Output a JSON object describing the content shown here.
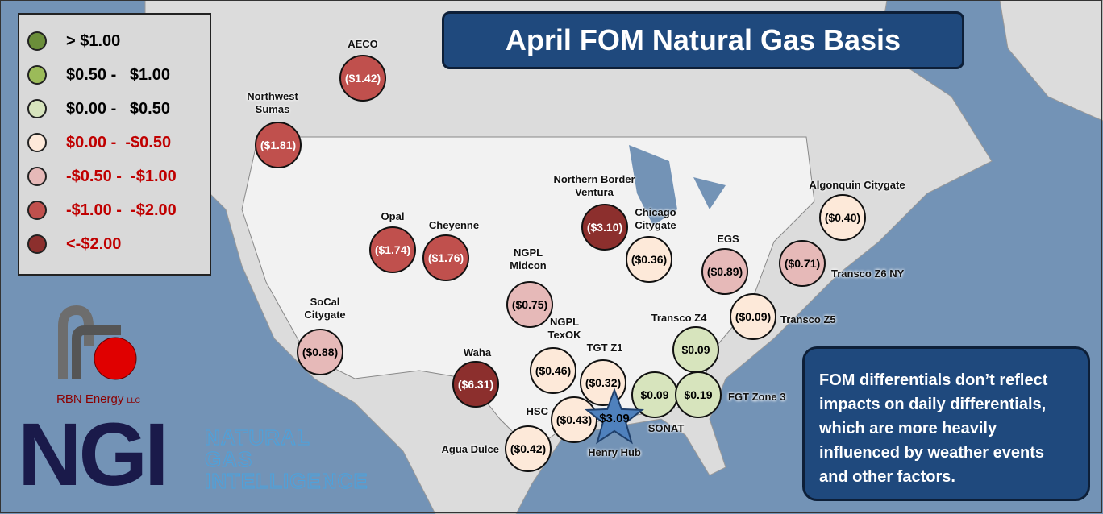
{
  "title": "April FOM Natural Gas Basis",
  "legend": [
    {
      "label": "> $1.00",
      "color": "#6b8e3a",
      "text_color": "#000000"
    },
    {
      "label": "$0.50 -   $1.00",
      "color": "#9bbb59",
      "text_color": "#000000"
    },
    {
      "label": "$0.00 -   $0.50",
      "color": "#d7e4bd",
      "text_color": "#000000"
    },
    {
      "label": "$0.00 -  -$0.50",
      "color": "#fde9d9",
      "text_color": "#c00000"
    },
    {
      "label": "-$0.50 -  -$1.00",
      "color": "#e6b9b8",
      "text_color": "#c00000"
    },
    {
      "label": "-$1.00 -  -$2.00",
      "color": "#c0504d",
      "text_color": "#c00000"
    },
    {
      "label": "<-$2.00",
      "color": "#8c2f2d",
      "text_color": "#c00000"
    }
  ],
  "hubs": [
    {
      "name": "AECO",
      "value": "($1.42)",
      "color": "#c0504d",
      "text_color": "#ffffff"
    },
    {
      "name": "Northwest Sumas",
      "value": "($1.81)",
      "color": "#c0504d",
      "text_color": "#ffffff"
    },
    {
      "name": "Opal",
      "value": "($1.74)",
      "color": "#c0504d",
      "text_color": "#ffffff"
    },
    {
      "name": "Cheyenne",
      "value": "($1.76)",
      "color": "#c0504d",
      "text_color": "#ffffff"
    },
    {
      "name": "Northern Border Ventura",
      "value": "($3.10)",
      "color": "#8c2f2d",
      "text_color": "#ffffff"
    },
    {
      "name": "Chicago Citygate",
      "value": "($0.36)",
      "color": "#fde9d9",
      "text_color": "#000000"
    },
    {
      "name": "NGPL Midcon",
      "value": "($0.75)",
      "color": "#e6b9b8",
      "text_color": "#000000"
    },
    {
      "name": "SoCal Citygate",
      "value": "($0.88)",
      "color": "#e6b9b8",
      "text_color": "#000000"
    },
    {
      "name": "Waha",
      "value": "($6.31)",
      "color": "#8c2f2d",
      "text_color": "#ffffff"
    },
    {
      "name": "NGPL TexOK",
      "value": "($0.46)",
      "color": "#fde9d9",
      "text_color": "#000000"
    },
    {
      "name": "TGT Z1",
      "value": "($0.32)",
      "color": "#fde9d9",
      "text_color": "#000000"
    },
    {
      "name": "HSC",
      "value": "($0.43)",
      "color": "#fde9d9",
      "text_color": "#000000"
    },
    {
      "name": "Agua Dulce",
      "value": "($0.42)",
      "color": "#fde9d9",
      "text_color": "#000000"
    },
    {
      "name": "SONAT",
      "value": "$0.09",
      "color": "#d7e4bd",
      "text_color": "#000000"
    },
    {
      "name": "FGT Zone 3",
      "value": "$0.19",
      "color": "#d7e4bd",
      "text_color": "#000000"
    },
    {
      "name": "Transco Z4",
      "value": "$0.09",
      "color": "#d7e4bd",
      "text_color": "#000000"
    },
    {
      "name": "Transco Z5",
      "value": "($0.09)",
      "color": "#fde9d9",
      "text_color": "#000000"
    },
    {
      "name": "EGS",
      "value": "($0.89)",
      "color": "#e6b9b8",
      "text_color": "#000000"
    },
    {
      "name": "Transco Z6 NY",
      "value": "($0.71)",
      "color": "#e6b9b8",
      "text_color": "#000000"
    },
    {
      "name": "Algonquin Citygate",
      "value": "($0.40)",
      "color": "#fde9d9",
      "text_color": "#000000"
    }
  ],
  "henry_hub": {
    "name": "Henry Hub",
    "value": "$3.09",
    "color": "#4f81bd",
    "text_color": "#000000"
  },
  "note": "FOM differentials don’t reflect impacts on daily differentials, which are more heavily influenced by weather events and other factors.",
  "logos": {
    "rbn": "RBN Energy",
    "rbn_suffix": "LLC",
    "ngi": "NGI",
    "ngi_words": [
      "NATURAL",
      "GAS",
      "INTELLIGENCE"
    ]
  }
}
